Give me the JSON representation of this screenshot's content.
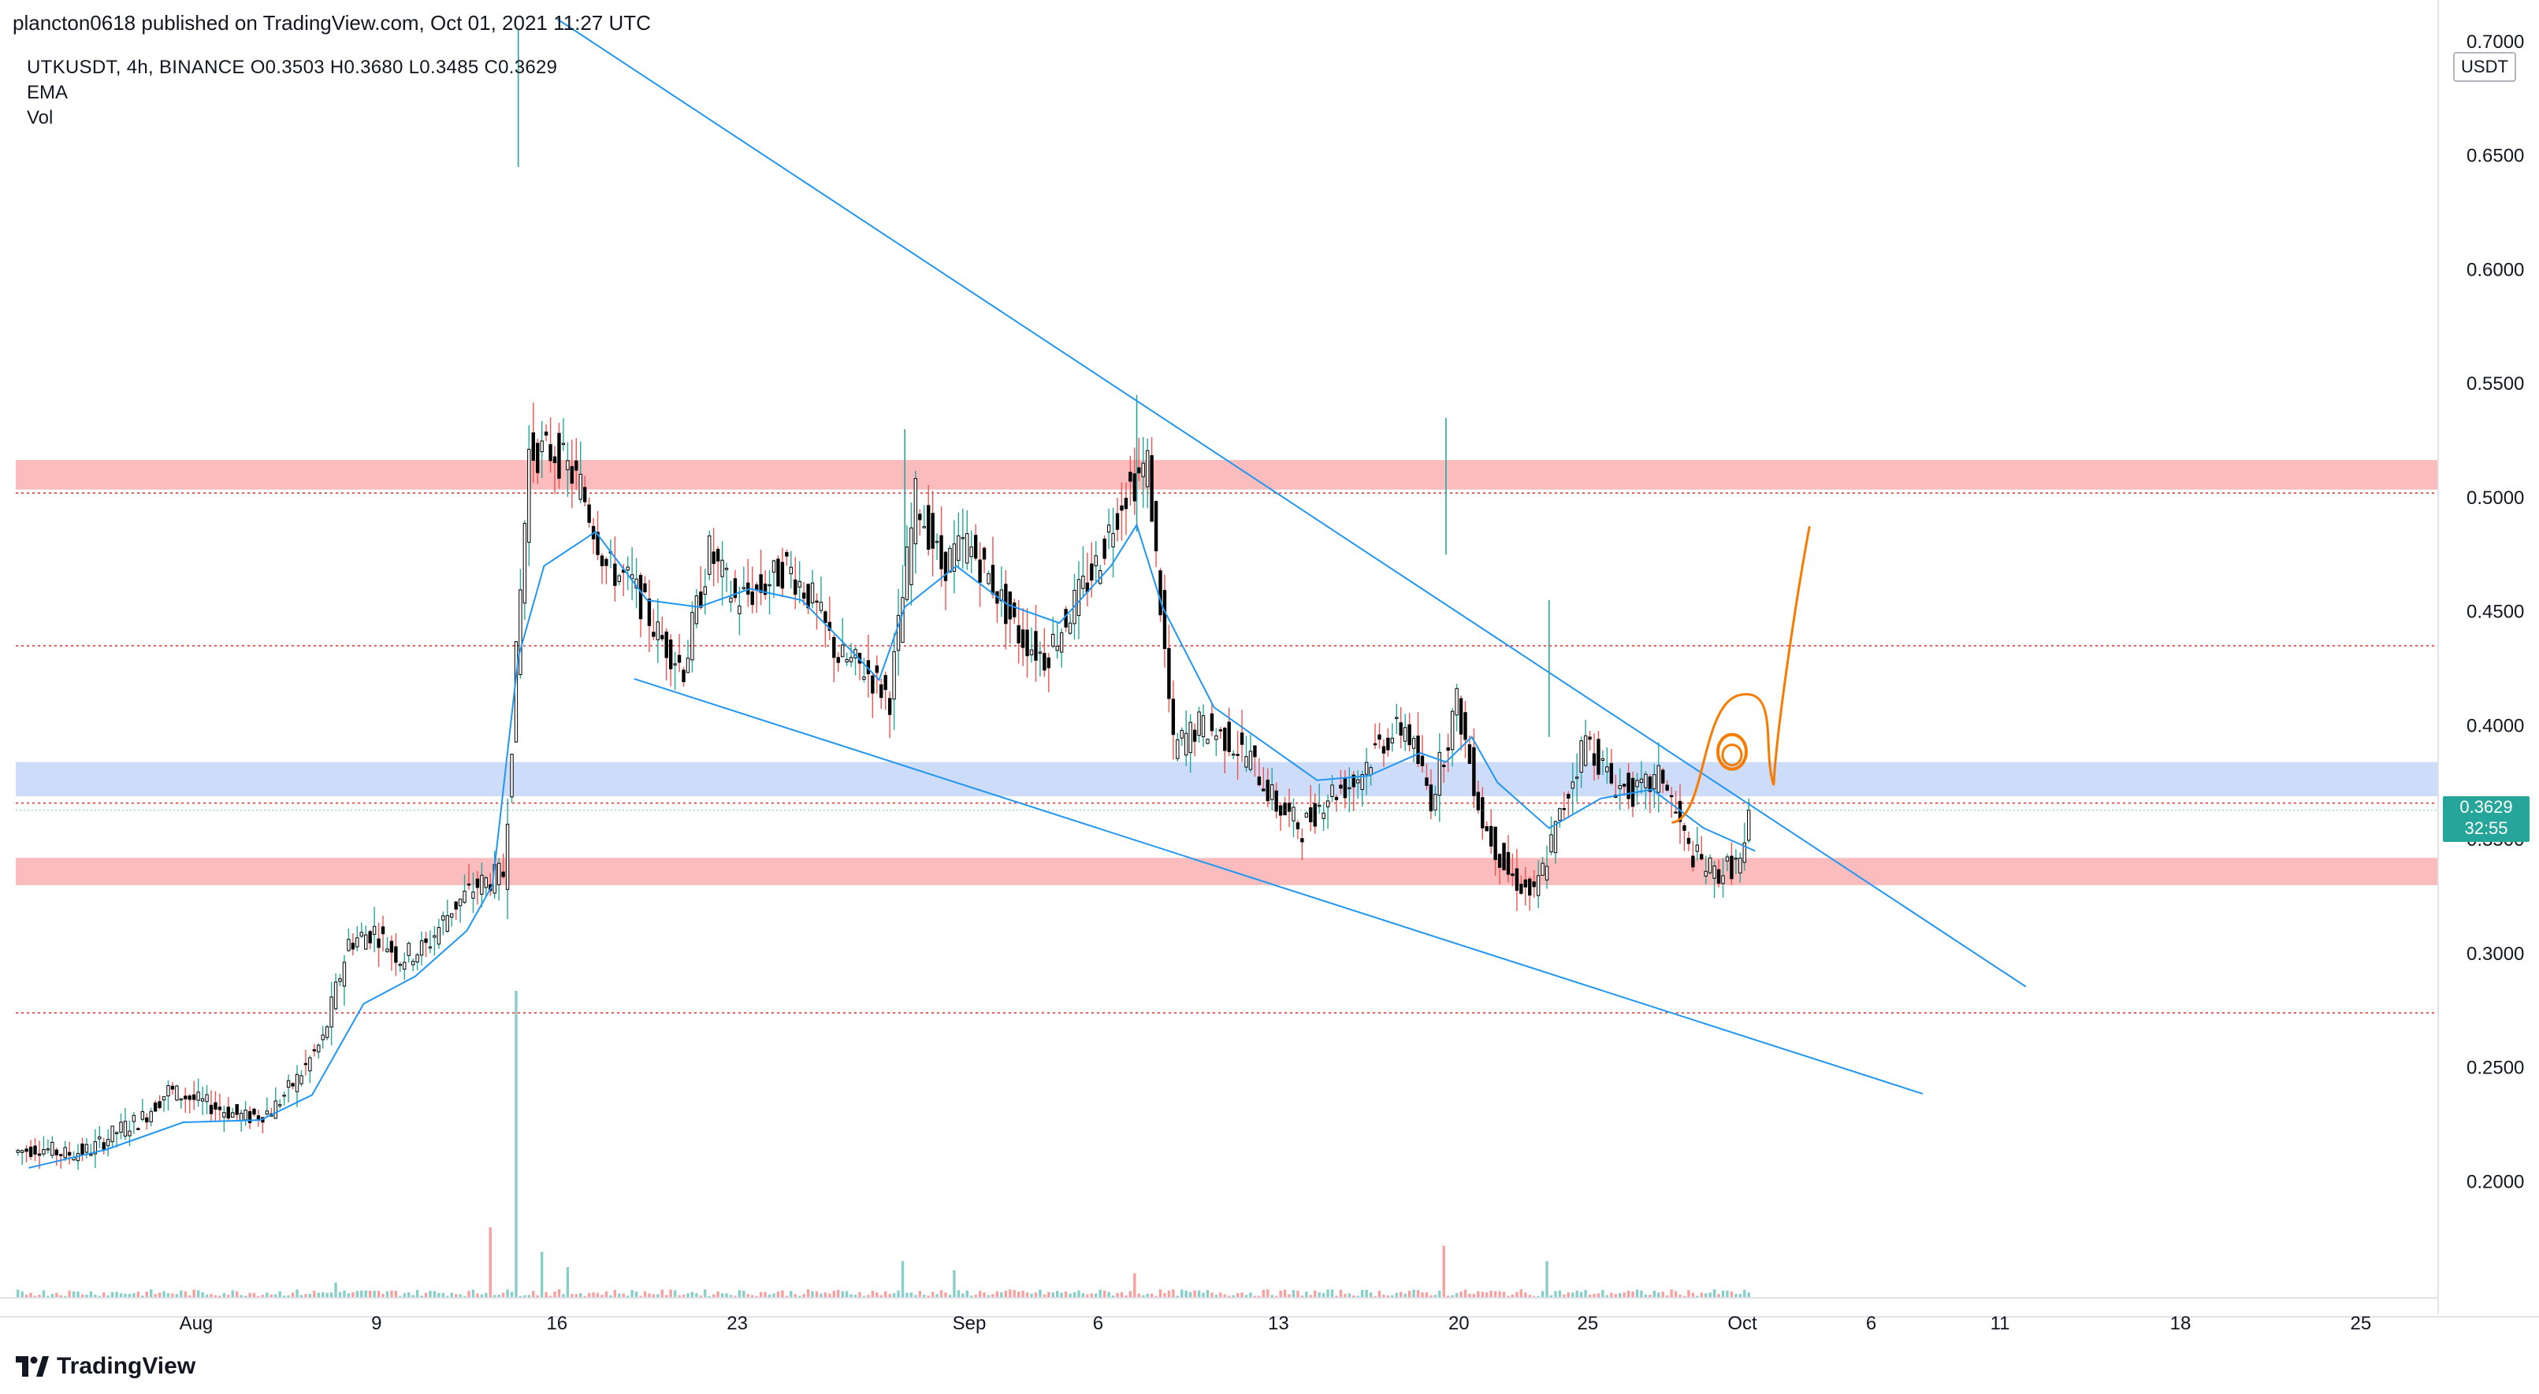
{
  "header": {
    "publish_line": "plancton0618 published on TradingView.com, Oct 01, 2021 11:27 UTC"
  },
  "legend": {
    "symbol_line": "UTKUSDT, 4h, BINANCE  O0.3503  H0.3680  L0.3485  C0.3629",
    "ema_label": "EMA",
    "vol_label": "Vol"
  },
  "footer": {
    "brand": "TradingView",
    "logo_icon": "tradingview-logo-icon"
  },
  "price_axis": {
    "unit": "USDT",
    "last_price": "0.3629",
    "countdown": "32:55"
  },
  "colors": {
    "up": "#26a69a",
    "down": "#ef5350",
    "candle_body_up": "#ffffff",
    "candle_border": "#000000",
    "ema": "#2196f3",
    "trendline": "#2196f3",
    "drawing": "#f57c00",
    "resistance_zone": "#f8a5a5",
    "support_zone": "#b7cdf7",
    "dotted_level": "#e53935"
  },
  "chart_data": {
    "type": "candlestick",
    "symbol": "UTKUSDT",
    "interval": "4h",
    "exchange": "BINANCE",
    "ohlc_last": {
      "open": 0.3503,
      "high": 0.368,
      "low": 0.3485,
      "close": 0.3629
    },
    "y_range": [
      0.1545,
      0.7065
    ],
    "y_ticks": [
      "0.2000",
      "0.2500",
      "0.3000",
      "0.3500",
      "0.4000",
      "0.4500",
      "0.5000",
      "0.5500",
      "0.6000",
      "0.6500",
      "0.7000"
    ],
    "x_range": [
      "2021-07-26",
      "2021-10-28"
    ],
    "x_ticks": [
      {
        "label": "Aug",
        "date": "2021-08-02"
      },
      {
        "label": "9",
        "date": "2021-08-09"
      },
      {
        "label": "16",
        "date": "2021-08-16"
      },
      {
        "label": "23",
        "date": "2021-08-23"
      },
      {
        "label": "Sep",
        "date": "2021-09-01"
      },
      {
        "label": "6",
        "date": "2021-09-06"
      },
      {
        "label": "13",
        "date": "2021-09-13"
      },
      {
        "label": "20",
        "date": "2021-09-20"
      },
      {
        "label": "25",
        "date": "2021-09-25"
      },
      {
        "label": "Oct",
        "date": "2021-10-01"
      },
      {
        "label": "6",
        "date": "2021-10-06"
      },
      {
        "label": "11",
        "date": "2021-10-11"
      },
      {
        "label": "18",
        "date": "2021-10-18"
      },
      {
        "label": "25",
        "date": "2021-10-25"
      }
    ],
    "closes": [
      [
        "2021-07-26",
        0.215
      ],
      [
        "2021-07-27",
        0.212
      ],
      [
        "2021-07-28",
        0.214
      ],
      [
        "2021-07-29",
        0.222
      ],
      [
        "2021-07-30",
        0.228
      ],
      [
        "2021-07-31",
        0.24
      ],
      [
        "2021-08-01",
        0.236
      ],
      [
        "2021-08-02",
        0.232
      ],
      [
        "2021-08-03",
        0.228
      ],
      [
        "2021-08-04",
        0.231
      ],
      [
        "2021-08-05",
        0.245
      ],
      [
        "2021-08-06",
        0.262
      ],
      [
        "2021-08-07",
        0.305
      ],
      [
        "2021-08-08",
        0.31
      ],
      [
        "2021-08-09",
        0.298
      ],
      [
        "2021-08-10",
        0.303
      ],
      [
        "2021-08-11",
        0.32
      ],
      [
        "2021-08-12",
        0.33
      ],
      [
        "2021-08-13",
        0.335
      ],
      [
        "2021-08-14",
        0.52
      ],
      [
        "2021-08-15",
        0.52
      ],
      [
        "2021-08-16",
        0.505
      ],
      [
        "2021-08-17",
        0.47
      ],
      [
        "2021-08-18",
        0.462
      ],
      [
        "2021-08-19",
        0.44
      ],
      [
        "2021-08-20",
        0.425
      ],
      [
        "2021-08-21",
        0.476
      ],
      [
        "2021-08-22",
        0.455
      ],
      [
        "2021-08-23",
        0.46
      ],
      [
        "2021-08-24",
        0.47
      ],
      [
        "2021-08-25",
        0.455
      ],
      [
        "2021-08-26",
        0.43
      ],
      [
        "2021-08-27",
        0.425
      ],
      [
        "2021-08-28",
        0.412
      ],
      [
        "2021-08-29",
        0.5
      ],
      [
        "2021-08-30",
        0.47
      ],
      [
        "2021-08-31",
        0.48
      ],
      [
        "2021-09-01",
        0.462
      ],
      [
        "2021-09-02",
        0.44
      ],
      [
        "2021-09-03",
        0.43
      ],
      [
        "2021-09-04",
        0.45
      ],
      [
        "2021-09-05",
        0.47
      ],
      [
        "2021-09-06",
        0.5
      ],
      [
        "2021-09-07",
        0.515
      ],
      [
        "2021-09-08",
        0.39
      ],
      [
        "2021-09-09",
        0.4
      ],
      [
        "2021-09-10",
        0.395
      ],
      [
        "2021-09-11",
        0.385
      ],
      [
        "2021-09-12",
        0.365
      ],
      [
        "2021-09-13",
        0.355
      ],
      [
        "2021-09-14",
        0.37
      ],
      [
        "2021-09-15",
        0.375
      ],
      [
        "2021-09-16",
        0.392
      ],
      [
        "2021-09-17",
        0.4
      ],
      [
        "2021-09-18",
        0.368
      ],
      [
        "2021-09-19",
        0.41
      ],
      [
        "2021-09-20",
        0.358
      ],
      [
        "2021-09-21",
        0.335
      ],
      [
        "2021-09-22",
        0.325
      ],
      [
        "2021-09-23",
        0.36
      ],
      [
        "2021-09-24",
        0.395
      ],
      [
        "2021-09-25",
        0.375
      ],
      [
        "2021-09-26",
        0.37
      ],
      [
        "2021-09-27",
        0.378
      ],
      [
        "2021-09-28",
        0.345
      ],
      [
        "2021-09-29",
        0.335
      ],
      [
        "2021-09-30",
        0.34
      ],
      [
        "2021-10-01",
        0.3629
      ]
    ],
    "ema": [
      [
        "2021-07-26",
        0.206
      ],
      [
        "2021-07-29",
        0.214
      ],
      [
        "2021-08-01",
        0.226
      ],
      [
        "2021-08-04",
        0.227
      ],
      [
        "2021-08-06",
        0.238
      ],
      [
        "2021-08-08",
        0.278
      ],
      [
        "2021-08-10",
        0.29
      ],
      [
        "2021-08-12",
        0.31
      ],
      [
        "2021-08-13",
        0.33
      ],
      [
        "2021-08-14",
        0.43
      ],
      [
        "2021-08-15",
        0.47
      ],
      [
        "2021-08-17",
        0.485
      ],
      [
        "2021-08-19",
        0.455
      ],
      [
        "2021-08-21",
        0.452
      ],
      [
        "2021-08-23",
        0.46
      ],
      [
        "2021-08-25",
        0.455
      ],
      [
        "2021-08-27",
        0.432
      ],
      [
        "2021-08-28",
        0.42
      ],
      [
        "2021-08-29",
        0.452
      ],
      [
        "2021-08-31",
        0.47
      ],
      [
        "2021-09-02",
        0.453
      ],
      [
        "2021-09-04",
        0.445
      ],
      [
        "2021-09-06",
        0.47
      ],
      [
        "2021-09-07",
        0.488
      ],
      [
        "2021-09-08",
        0.452
      ],
      [
        "2021-09-10",
        0.408
      ],
      [
        "2021-09-12",
        0.392
      ],
      [
        "2021-09-14",
        0.376
      ],
      [
        "2021-09-16",
        0.378
      ],
      [
        "2021-09-18",
        0.388
      ],
      [
        "2021-09-19",
        0.384
      ],
      [
        "2021-09-20",
        0.395
      ],
      [
        "2021-09-21",
        0.375
      ],
      [
        "2021-09-23",
        0.355
      ],
      [
        "2021-09-25",
        0.368
      ],
      [
        "2021-09-27",
        0.372
      ],
      [
        "2021-09-29",
        0.355
      ],
      [
        "2021-10-01",
        0.345
      ]
    ],
    "volume_spikes": [
      [
        "2021-08-07",
        0.05
      ],
      [
        "2021-08-13",
        0.23
      ],
      [
        "2021-08-14",
        1.0
      ],
      [
        "2021-08-15",
        0.15
      ],
      [
        "2021-08-16",
        0.1
      ],
      [
        "2021-08-29",
        0.12
      ],
      [
        "2021-08-31",
        0.09
      ],
      [
        "2021-09-07",
        0.08
      ],
      [
        "2021-09-19",
        0.17
      ],
      [
        "2021-09-23",
        0.12
      ]
    ],
    "zones": [
      {
        "kind": "resistance",
        "from": 0.5035,
        "to": 0.5165
      },
      {
        "kind": "support",
        "from": 0.369,
        "to": 0.384
      },
      {
        "kind": "resistance",
        "from": 0.33,
        "to": 0.342
      }
    ],
    "dotted_levels": [
      0.502,
      0.435,
      0.366,
      0.274
    ],
    "trendlines": [
      {
        "from": [
          "2021-08-16",
          0.71
        ],
        "to": [
          "2021-10-12",
          0.2855
        ]
      },
      {
        "from": [
          "2021-08-19",
          0.4205
        ],
        "to": [
          "2021-10-08",
          0.2385
        ]
      }
    ],
    "drawing_path": [
      [
        "2021-09-28",
        0.3575
      ],
      [
        "2021-09-29",
        0.36
      ],
      [
        "2021-09-30",
        0.41
      ],
      [
        "2021-10-01",
        0.3825
      ],
      [
        "2021-10-02",
        0.398
      ],
      [
        "2021-10-03",
        0.45
      ],
      [
        "2021-10-03",
        0.487
      ]
    ],
    "drawing_circle": {
      "date": "2021-09-30",
      "price": 0.3885
    }
  }
}
